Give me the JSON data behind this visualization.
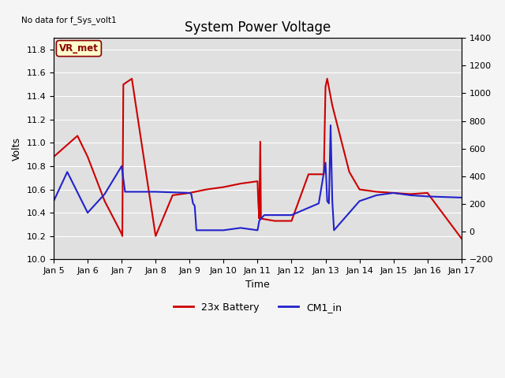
{
  "title": "System Power Voltage",
  "top_left_text": "No data for f_Sys_volt1",
  "ylabel_left": "Volts",
  "xlabel": "Time",
  "ylim_left": [
    10.0,
    11.9
  ],
  "ylim_right": [
    -200,
    1400
  ],
  "plot_bg_color": "#e0e0e0",
  "fig_bg_color": "#f5f5f5",
  "annotation_box_text": "VR_met",
  "annotation_box_color": "#ffffcc",
  "annotation_box_border": "#8b0000",
  "x_tick_labels": [
    "Jan 5",
    "Jan 6",
    "Jan 7",
    "Jan 8",
    "Jan 9",
    "Jan 10",
    "Jan 11",
    "Jan 12",
    "Jan 13",
    "Jan 14",
    "Jan 15",
    "Jan 16",
    "Jan 17"
  ],
  "x_tick_positions": [
    0,
    1,
    2,
    3,
    4,
    5,
    6,
    7,
    8,
    9,
    10,
    11,
    12
  ],
  "y_ticks_left": [
    10.0,
    10.2,
    10.4,
    10.6,
    10.8,
    11.0,
    11.2,
    11.4,
    11.6,
    11.8
  ],
  "y_ticks_right": [
    -200,
    0,
    200,
    400,
    600,
    800,
    1000,
    1200,
    1400
  ],
  "red_label": "23x Battery",
  "blue_label": "CM1_in",
  "red_color": "#cc0000",
  "blue_color": "#2222cc",
  "title_fontsize": 12,
  "axis_fontsize": 9,
  "tick_fontsize": 8,
  "red_x": [
    0.0,
    0.7,
    1.0,
    1.5,
    2.0,
    2.02,
    2.05,
    2.3,
    3.0,
    3.5,
    4.0,
    4.5,
    5.0,
    5.5,
    6.0,
    6.02,
    6.05,
    6.08,
    6.1,
    6.5,
    7.0,
    7.5,
    7.95,
    8.0,
    8.05,
    8.2,
    8.7,
    9.0,
    9.5,
    10.0,
    10.5,
    11.0,
    12.0
  ],
  "red_y": [
    10.88,
    11.06,
    10.88,
    10.5,
    10.22,
    10.2,
    11.5,
    11.55,
    10.2,
    10.55,
    10.57,
    10.6,
    10.62,
    10.65,
    10.67,
    10.5,
    10.35,
    11.01,
    10.35,
    10.33,
    10.33,
    10.73,
    10.73,
    11.48,
    11.55,
    11.32,
    10.75,
    10.6,
    10.58,
    10.57,
    10.56,
    10.57,
    10.18
  ],
  "blue_x": [
    0.0,
    0.4,
    1.0,
    1.5,
    2.0,
    2.1,
    3.0,
    4.0,
    4.05,
    4.1,
    4.15,
    4.2,
    5.0,
    5.5,
    6.0,
    6.05,
    6.1,
    6.2,
    7.0,
    7.8,
    8.0,
    8.05,
    8.1,
    8.15,
    8.2,
    8.25,
    9.0,
    9.5,
    10.0,
    10.5,
    11.0,
    12.0
  ],
  "blue_y": [
    10.5,
    10.75,
    10.4,
    10.56,
    10.8,
    10.58,
    10.58,
    10.57,
    10.56,
    10.48,
    10.46,
    10.25,
    10.25,
    10.27,
    10.25,
    10.33,
    10.35,
    10.38,
    10.38,
    10.48,
    10.83,
    10.5,
    10.48,
    11.15,
    10.5,
    10.25,
    10.5,
    10.55,
    10.57,
    10.55,
    10.54,
    10.53
  ]
}
